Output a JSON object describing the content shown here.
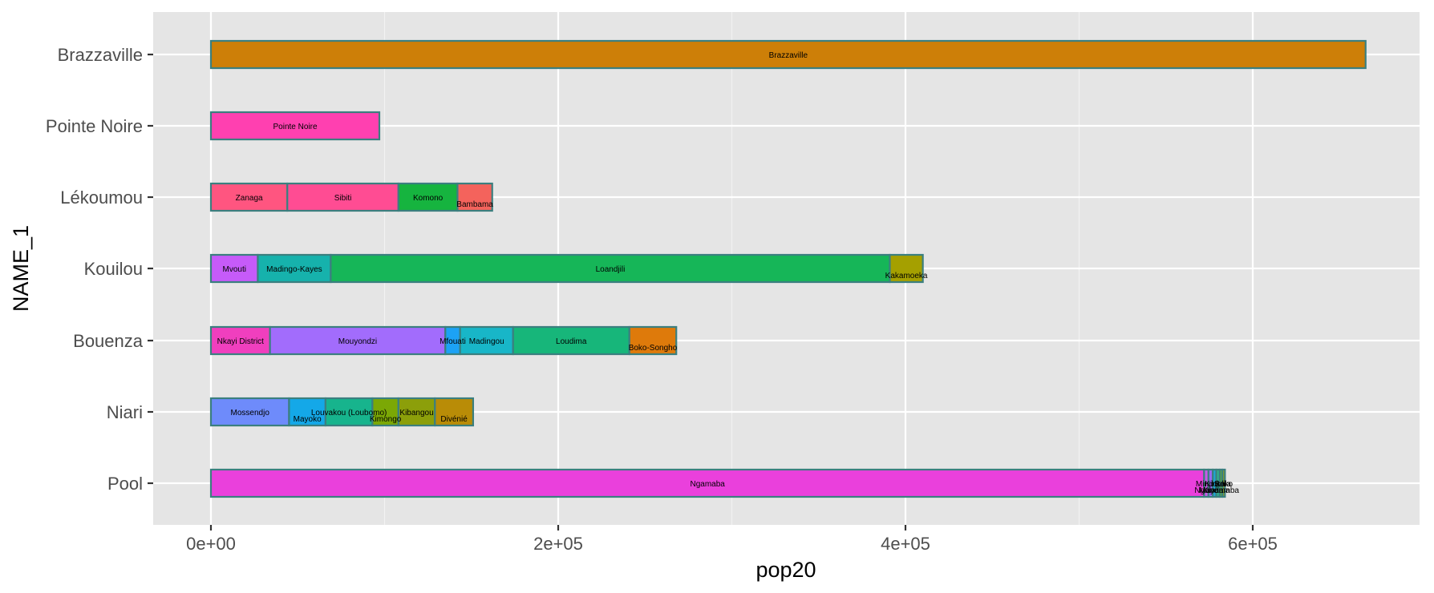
{
  "chart_data": {
    "type": "bar",
    "orientation": "horizontal",
    "stacked": true,
    "xlabel": "pop20",
    "ylabel": "NAME_1",
    "xlim": [
      -33000,
      695000
    ],
    "x_ticks": [
      0,
      200000,
      400000,
      600000
    ],
    "x_tick_labels": [
      "0e+00",
      "2e+05",
      "4e+05",
      "6e+05"
    ],
    "grid": true,
    "legend": "none",
    "categories": [
      "Brazzaville",
      "Pointe Noire",
      "Lékoumou",
      "Kouilou",
      "Bouenza",
      "Niari",
      "Pool"
    ],
    "series": [
      {
        "category": "Brazzaville",
        "segments": [
          {
            "label": "Brazzaville",
            "value": 665000,
            "color": "#CD7F08"
          }
        ]
      },
      {
        "category": "Pointe Noire",
        "segments": [
          {
            "label": "Pointe Noire",
            "value": 97000,
            "color": "#FF40B0"
          }
        ]
      },
      {
        "category": "Lékoumou",
        "segments": [
          {
            "label": "Zanaga",
            "value": 44000,
            "color": "#FF5580"
          },
          {
            "label": "Sibiti",
            "value": 64000,
            "color": "#FF4C93"
          },
          {
            "label": "Komono",
            "value": 34000,
            "color": "#16B43F"
          },
          {
            "label": "Bambama",
            "value": 20000,
            "color": "#F4635C"
          }
        ]
      },
      {
        "category": "Kouilou",
        "segments": [
          {
            "label": "Mvouti",
            "value": 27000,
            "color": "#C65BF9"
          },
          {
            "label": "Madingo-Kayes",
            "value": 42000,
            "color": "#16B2AC"
          },
          {
            "label": "Loandjili",
            "value": 322000,
            "color": "#16B658"
          },
          {
            "label": "Kakamoeka",
            "value": 19000,
            "color": "#A5A000"
          }
        ]
      },
      {
        "category": "Bouenza",
        "segments": [
          {
            "label": "Nkayi District",
            "value": 34000,
            "color": "#F03FBE"
          },
          {
            "label": "Mouyondzi",
            "value": 101000,
            "color": "#A26CFC"
          },
          {
            "label": "Mfouati",
            "value": 8500,
            "color": "#1CA2F5"
          },
          {
            "label": "Madingou",
            "value": 30500,
            "color": "#18B6C8"
          },
          {
            "label": "Loudima",
            "value": 67000,
            "color": "#17B67A"
          },
          {
            "label": "Boko-Songho",
            "value": 27000,
            "color": "#DE7A0B"
          }
        ]
      },
      {
        "category": "Niari",
        "segments": [
          {
            "label": "Mossendjo",
            "value": 45000,
            "color": "#6E8BFB"
          },
          {
            "label": "Mayoko",
            "value": 21000,
            "color": "#14A8E8"
          },
          {
            "label": "Louvakou (Loubomo)",
            "value": 27000,
            "color": "#17B48D"
          },
          {
            "label": "Kimongo",
            "value": 15000,
            "color": "#7BA805"
          },
          {
            "label": "Kibangou",
            "value": 21000,
            "color": "#8C9F0A"
          },
          {
            "label": "Divénié",
            "value": 22000,
            "color": "#B98C07"
          }
        ]
      },
      {
        "category": "Pool",
        "segments": [
          {
            "label": "Ngamaba",
            "value": 572000,
            "color": "#EA40DC"
          },
          {
            "label": "Ngabé",
            "value": 2500,
            "color": "#C85BE8"
          },
          {
            "label": "Mindouli",
            "value": 2500,
            "color": "#9A6AF0"
          },
          {
            "label": "Mayama",
            "value": 2000,
            "color": "#1CA7D8"
          },
          {
            "label": "Kinkala",
            "value": 2000,
            "color": "#2FB48A"
          },
          {
            "label": "Kindamba",
            "value": 1500,
            "color": "#5CAA40"
          },
          {
            "label": "Boko",
            "value": 1500,
            "color": "#8C9F24"
          }
        ]
      }
    ]
  }
}
